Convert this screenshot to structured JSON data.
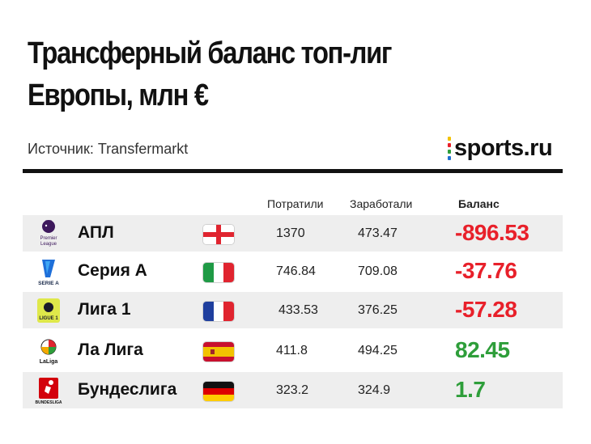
{
  "header": {
    "title_line1": "Трансферный баланс топ-лиг",
    "title_line2": "Европы, млн €",
    "source": "Источник: Transfermarkt",
    "logo_text": "sports.ru",
    "logo_dot_colors": [
      "#f2c200",
      "#e8202a",
      "#2e9e3a",
      "#1f6fd1",
      "#8a3fb8"
    ]
  },
  "columns": {
    "spent": "Потратили",
    "earned": "Заработали",
    "balance": "Баланс"
  },
  "colors": {
    "negative": "#e8202a",
    "positive": "#2e9e3a"
  },
  "rows": [
    {
      "league": "АПЛ",
      "crest": "premier-league-crest",
      "crest_text": "Premier League",
      "flag": "england-flag",
      "spent": "1370",
      "earned": "473.47",
      "balance": "-896.53",
      "sign": "neg"
    },
    {
      "league": "Серия А",
      "crest": "serie-a-crest",
      "crest_text": "SERIE A",
      "flag": "italy-flag",
      "spent": "746.84",
      "earned": "709.08",
      "balance": "-37.76",
      "sign": "neg"
    },
    {
      "league": "Лига 1",
      "crest": "ligue-1-crest",
      "crest_text": "LIGUE 1",
      "flag": "france-flag",
      "spent": "433.53",
      "earned": "376.25",
      "balance": "-57.28",
      "sign": "neg"
    },
    {
      "league": "Ла Лига",
      "crest": "laliga-crest",
      "crest_text": "LaLiga",
      "flag": "spain-flag",
      "spent": "411.8",
      "earned": "494.25",
      "balance": "82.45",
      "sign": "pos"
    },
    {
      "league": "Бундеслига",
      "crest": "bundesliga-crest",
      "crest_text": "BUNDESLIGA",
      "flag": "germany-flag",
      "spent": "323.2",
      "earned": "324.9",
      "balance": "1.7",
      "sign": "pos"
    }
  ]
}
